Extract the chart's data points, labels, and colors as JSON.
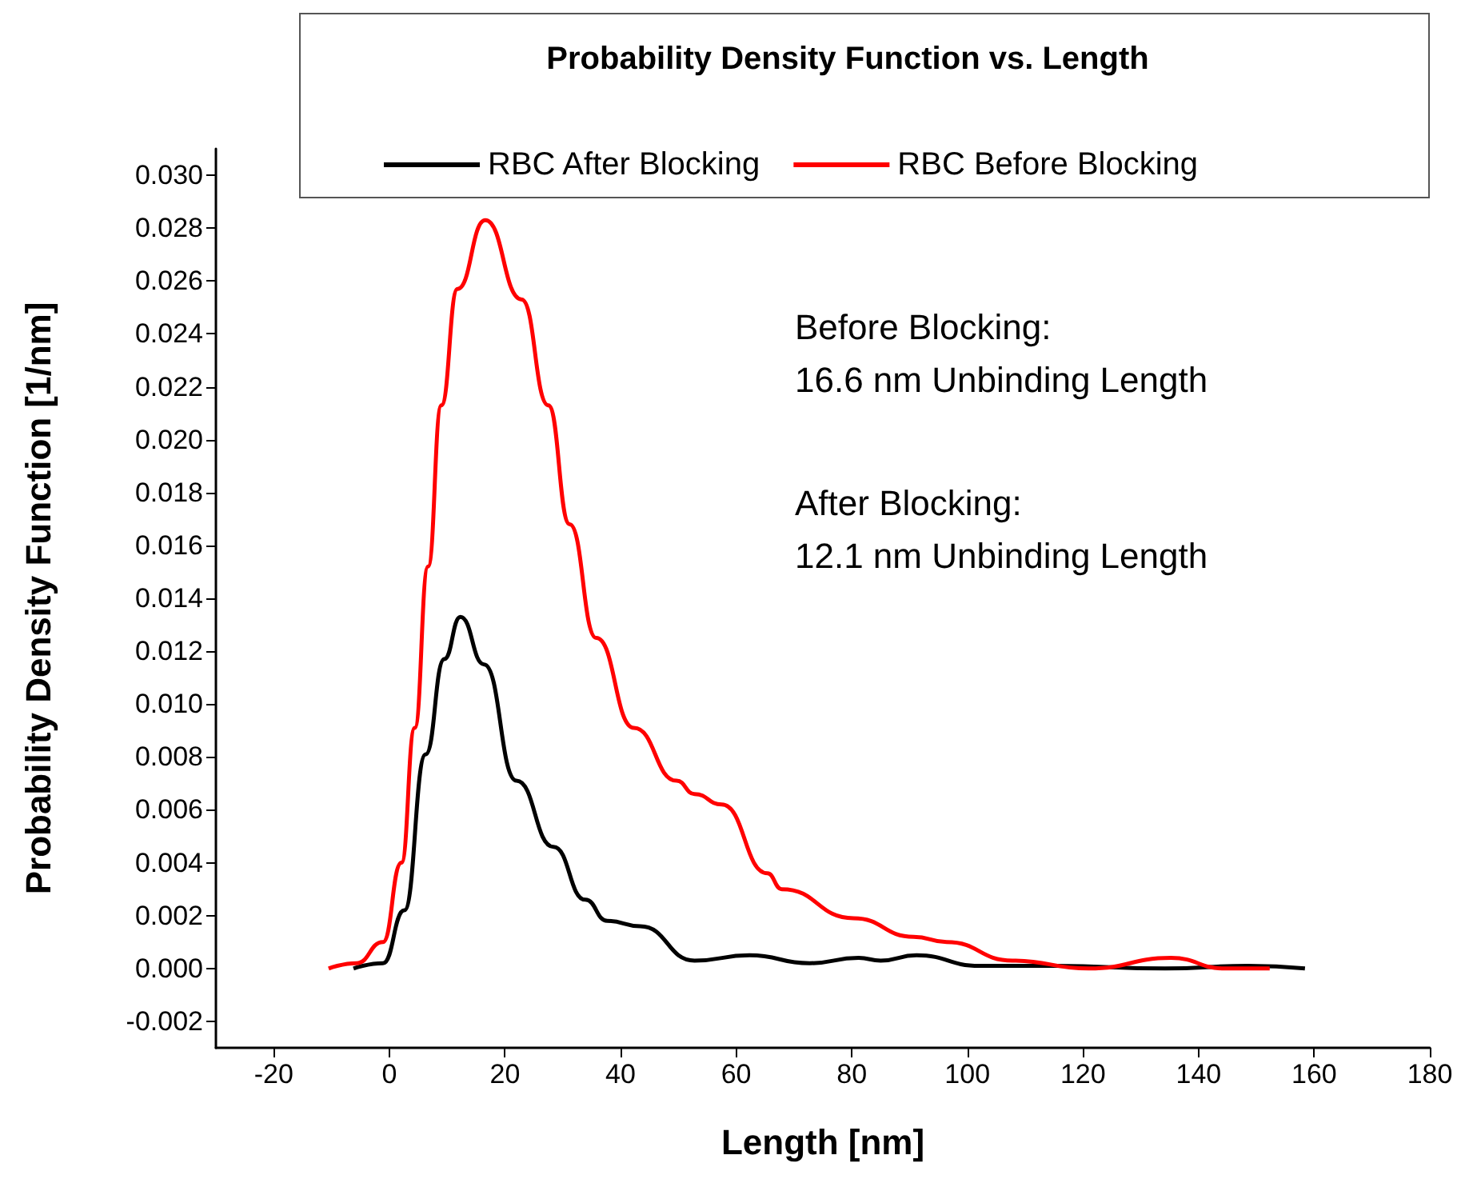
{
  "chart_data": {
    "type": "line",
    "title": "Probability Density Function vs. Length",
    "xlabel": "Length [nm]",
    "ylabel": "Probability Density Function [1/nm]",
    "annotations": [
      "Before Blocking:\n16.6 nm Unbinding Length",
      "After Blocking:\n12.1 nm Unbinding Length"
    ],
    "series": [
      {
        "name": "RBC After Blocking",
        "color": "#000000",
        "x": [
          -6.2,
          -1.1,
          2.6,
          6.3,
          9.5,
          12.3,
          16.4,
          22.0,
          28.4,
          33.9,
          37.7,
          43.4,
          52.8,
          62.3,
          72.7,
          81.2,
          85.0,
          91.2,
          102.1,
          115.3,
          134.2,
          148.5,
          158.4
        ],
        "values": [
          0,
          0.0002,
          0.0022,
          0.0081,
          0.0117,
          0.0133,
          0.0115,
          0.0071,
          0.0046,
          0.0026,
          0.0018,
          0.0016,
          0.0003,
          0.0005,
          0.0002,
          0.0004,
          0.0003,
          0.0005,
          0.0001,
          0.0001,
          0,
          0.0001,
          0
        ]
      },
      {
        "name": "RBC Before Blocking",
        "color": "#ff0000",
        "x": [
          -10.5,
          -5.7,
          -1.1,
          2.1,
          4.4,
          6.7,
          9.0,
          11.8,
          16.6,
          22.9,
          27.5,
          31.2,
          35.8,
          42.3,
          49.7,
          52.8,
          57.5,
          65.4,
          67.9,
          80.3,
          90.7,
          96.4,
          107.8,
          121.0,
          135.2,
          144.6,
          152.3
        ],
        "values": [
          0,
          0.0002,
          0.001,
          0.004,
          0.0091,
          0.0152,
          0.0213,
          0.0257,
          0.0283,
          0.0253,
          0.0213,
          0.0168,
          0.0125,
          0.0091,
          0.0071,
          0.0066,
          0.0062,
          0.0036,
          0.003,
          0.0019,
          0.0012,
          0.001,
          0.0003,
          0,
          0.0004,
          0,
          0
        ]
      }
    ],
    "xlim": [
      -30,
      180
    ],
    "xticks": [
      -20,
      0,
      20,
      40,
      60,
      80,
      100,
      120,
      140,
      160,
      180
    ],
    "ylim": [
      -0.003,
      0.031
    ],
    "yticks": [
      {
        "value": -0.002,
        "label": "-0.002"
      },
      {
        "value": 0,
        "label": "0.000"
      },
      {
        "value": 0.002,
        "label": "0.002"
      },
      {
        "value": 0.004,
        "label": "0.004"
      },
      {
        "value": 0.006,
        "label": "0.006"
      },
      {
        "value": 0.008,
        "label": "0.008"
      },
      {
        "value": 0.01,
        "label": "0.010"
      },
      {
        "value": 0.012,
        "label": "0.012"
      },
      {
        "value": 0.014,
        "label": "0.014"
      },
      {
        "value": 0.016,
        "label": "0.016"
      },
      {
        "value": 0.018,
        "label": "0.018"
      },
      {
        "value": 0.02,
        "label": "0.020"
      },
      {
        "value": 0.022,
        "label": "0.022"
      },
      {
        "value": 0.024,
        "label": "0.024"
      },
      {
        "value": 0.026,
        "label": "0.026"
      },
      {
        "value": 0.028,
        "label": "0.028"
      },
      {
        "value": 0.03,
        "label": "0.030"
      }
    ],
    "grid": false,
    "legend": "top",
    "marker": "none",
    "line_style": "solid"
  }
}
